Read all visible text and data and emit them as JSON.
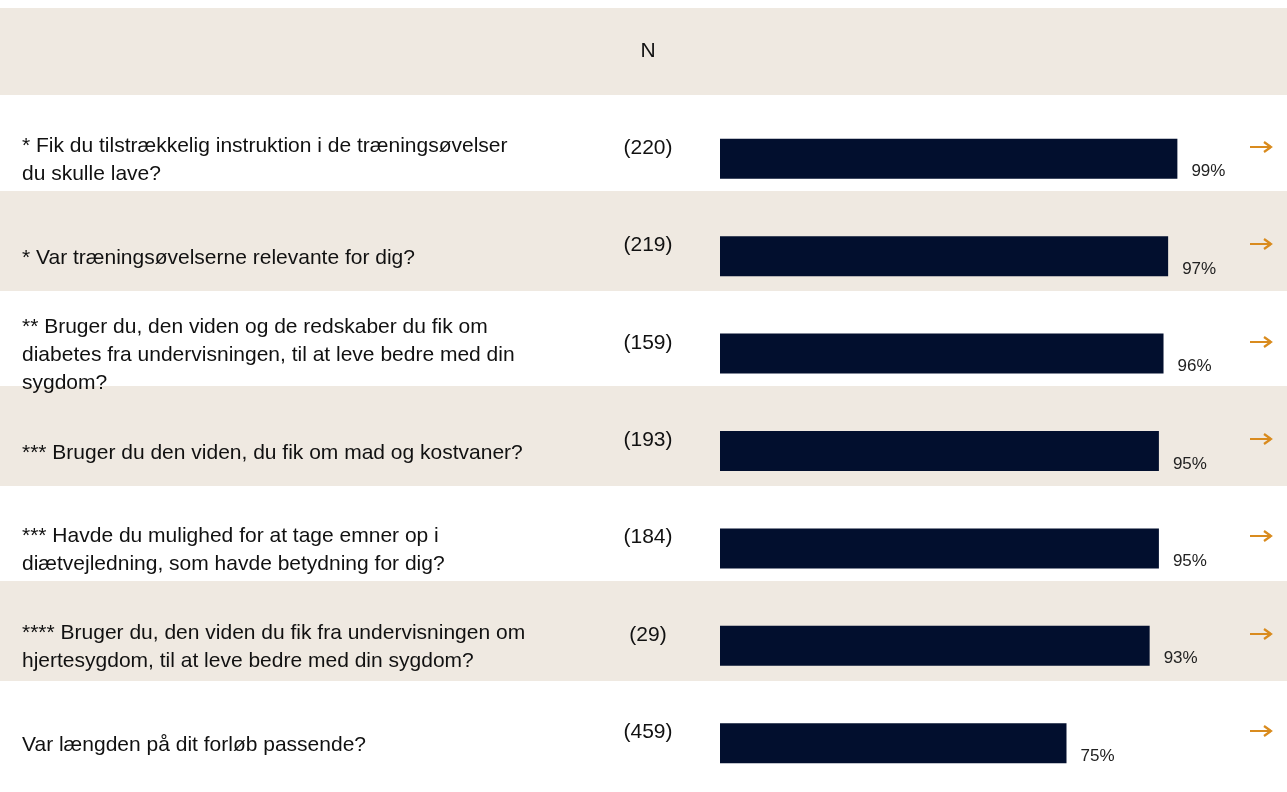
{
  "chart_data": {
    "type": "bar",
    "orientation": "horizontal",
    "categories": [
      "* Fik du tilstrækkelig instruktion i de træningsøvelser du skulle lave?",
      "* Var træningsøvelserne relevante for dig?",
      "** Bruger du, den viden og de redskaber du fik om diabetes fra undervisningen, til at leve bedre med din sygdom?",
      "*** Bruger du den viden, du fik om mad og kostvaner?",
      "*** Havde du mulighed for at tage emner op i diætvejledning, som havde betydning for dig?",
      "**** Bruger du, den viden du fik fra undervisningen om hjertesygdom, til at leve bedre med din sygdom?",
      "Var længden på dit forløb passende?"
    ],
    "values": [
      99,
      97,
      96,
      95,
      95,
      93,
      75
    ],
    "value_labels": [
      "99%",
      "97%",
      "96%",
      "95%",
      "95%",
      "93%",
      "75%"
    ],
    "color": "#020f2e",
    "tick_labels": "y",
    "annotations": [
      "N",
      "(220)",
      "(219)",
      "(159)",
      "(193)",
      "(184)",
      "(29)",
      "(459)"
    ]
  }
}
